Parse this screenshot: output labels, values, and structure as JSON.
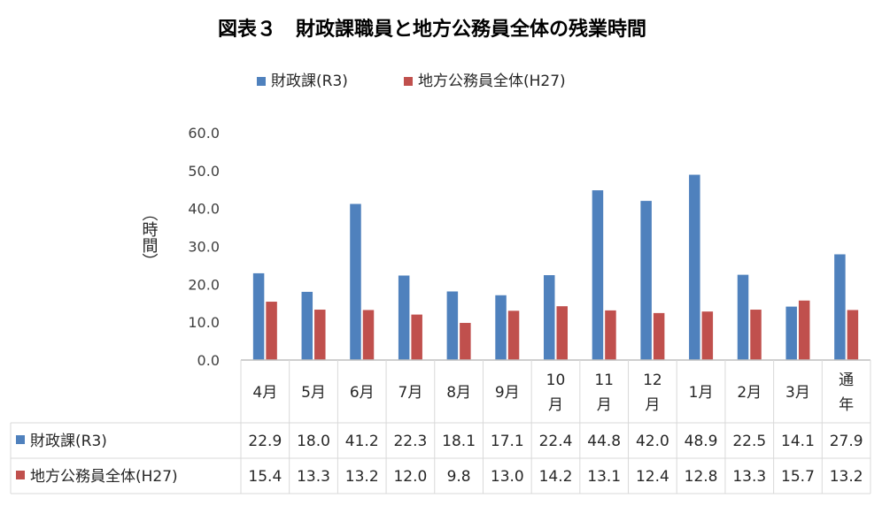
{
  "chart_data": {
    "type": "bar",
    "title": "図表３　財政課職員と地方公務員全体の残業時間",
    "ylabel": "（時間）",
    "ylim": [
      0,
      60
    ],
    "yticks": [
      "0.0",
      "10.0",
      "20.0",
      "30.0",
      "40.0",
      "50.0",
      "60.0"
    ],
    "categories": [
      "4月",
      "5月",
      "6月",
      "7月",
      "8月",
      "9月",
      "10\n月",
      "11\n月",
      "12\n月",
      "1月",
      "2月",
      "3月",
      "通\n年"
    ],
    "series": [
      {
        "name": "財政課(R3)",
        "color": "#4f81bd",
        "values": [
          22.9,
          18.0,
          41.2,
          22.3,
          18.1,
          17.1,
          22.4,
          44.8,
          42.0,
          48.9,
          22.5,
          14.1,
          27.9
        ],
        "labels": [
          "22.9",
          "18.0",
          "41.2",
          "22.3",
          "18.1",
          "17.1",
          "22.4",
          "44.8",
          "42.0",
          "48.9",
          "22.5",
          "14.1",
          "27.9"
        ]
      },
      {
        "name": "地方公務員全体(H27)",
        "color": "#c0504d",
        "values": [
          15.4,
          13.3,
          13.2,
          12.0,
          9.8,
          13.0,
          14.2,
          13.1,
          12.4,
          12.8,
          13.3,
          15.7,
          13.2
        ],
        "labels": [
          "15.4",
          "13.3",
          "13.2",
          "12.0",
          "9.8",
          "13.0",
          "14.2",
          "13.1",
          "12.4",
          "12.8",
          "13.3",
          "15.7",
          "13.2"
        ]
      }
    ],
    "grid": false,
    "legend": "top-center",
    "data_table": true
  }
}
